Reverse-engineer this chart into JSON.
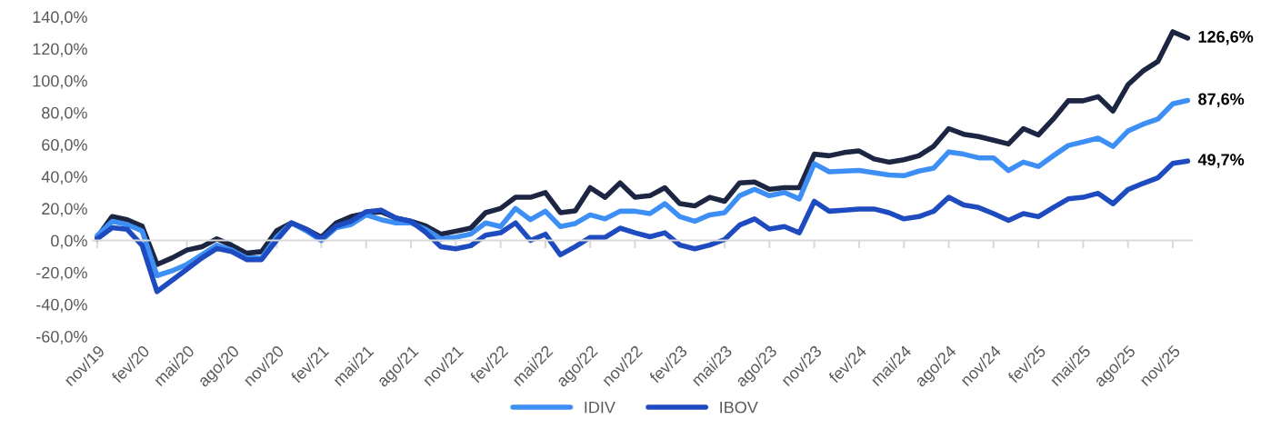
{
  "chart_data": {
    "type": "line",
    "categories": [
      "nov/19",
      null,
      null,
      "fev/20",
      null,
      null,
      "mai/20",
      null,
      null,
      "ago/20",
      null,
      null,
      "nov/20",
      null,
      null,
      "fev/21",
      null,
      null,
      "mai/21",
      null,
      null,
      "ago/21",
      null,
      null,
      "nov/21",
      null,
      null,
      "fev/22",
      null,
      null,
      "mai/22",
      null,
      null,
      "ago/22",
      null,
      null,
      "nov/22",
      null,
      null,
      "fev/23",
      null,
      null,
      "mai/23",
      null,
      null,
      "ago/23",
      null,
      null,
      "nov/23",
      null,
      null,
      "fev/24",
      null,
      null,
      "mai/24",
      null,
      null,
      "ago/24",
      null,
      null,
      "nov/24",
      null,
      null,
      "fev/25",
      null,
      null,
      "mai/25",
      null,
      null,
      "ago/25",
      null,
      null,
      "nov/25",
      null
    ],
    "series": [
      {
        "color": "#1c2541",
        "values": [
          2,
          15,
          13,
          9,
          -15,
          -11,
          -6,
          -4,
          1,
          -3,
          -8,
          -7,
          6,
          11,
          7,
          2,
          11,
          15,
          17,
          18,
          14,
          12,
          9,
          3.9,
          5.8,
          7.7,
          17.4,
          20,
          27,
          27,
          30,
          17.4,
          18.5,
          33,
          27,
          36,
          27,
          28,
          33,
          23,
          21.6,
          27,
          24.5,
          36,
          36.6,
          32,
          33,
          33,
          54,
          53,
          55,
          56,
          51,
          49,
          50.5,
          53,
          59,
          70,
          66.5,
          65,
          62.7,
          60.4,
          70,
          66,
          76,
          87.4,
          87.4,
          90,
          81,
          97.4,
          106,
          112,
          130.6,
          126.6
        ],
        "value_labels": [
          null,
          null,
          null,
          null,
          null,
          null,
          null,
          null,
          null,
          null,
          null,
          null,
          null,
          null,
          null,
          null,
          null,
          null,
          null,
          null,
          null,
          null,
          null,
          null,
          null,
          null,
          null,
          null,
          null,
          null,
          null,
          null,
          null,
          null,
          null,
          null,
          null,
          null,
          null,
          null,
          null,
          null,
          null,
          null,
          null,
          null,
          null,
          null,
          null,
          null,
          null,
          null,
          null,
          null,
          null,
          null,
          null,
          null,
          null,
          null,
          null,
          null,
          null,
          null,
          null,
          null,
          null,
          null,
          null,
          null,
          null,
          null,
          null,
          "126,6%"
        ]
      },
      {
        "name": "IDIV",
        "color": "#3d8ef5",
        "values": [
          3,
          12,
          10,
          6,
          -22,
          -19,
          -15,
          -9,
          -3,
          -6,
          -11,
          -11,
          2,
          11,
          6,
          0,
          8,
          10,
          16,
          13,
          11,
          11,
          7,
          1,
          2,
          4,
          11,
          8.7,
          20,
          13,
          18.3,
          8.7,
          10.6,
          16,
          13.5,
          18.3,
          18.3,
          16.8,
          23,
          14.9,
          12,
          16,
          17.4,
          28,
          32,
          28,
          30,
          26,
          48,
          43,
          43.4,
          43.8,
          42.4,
          41,
          40.5,
          43.4,
          45.3,
          55.4,
          54,
          51.7,
          51.7,
          43.8,
          49,
          46.3,
          53,
          59.4,
          61.7,
          64,
          58.8,
          68.5,
          72.7,
          76,
          85.5,
          87.6
        ],
        "value_labels": [
          null,
          null,
          null,
          null,
          null,
          null,
          null,
          null,
          null,
          null,
          null,
          null,
          null,
          null,
          null,
          null,
          null,
          null,
          null,
          null,
          null,
          null,
          null,
          null,
          null,
          null,
          null,
          null,
          null,
          null,
          null,
          null,
          null,
          null,
          null,
          null,
          null,
          null,
          null,
          null,
          null,
          null,
          null,
          null,
          null,
          null,
          null,
          null,
          null,
          null,
          null,
          null,
          null,
          null,
          null,
          null,
          null,
          null,
          null,
          null,
          null,
          null,
          null,
          null,
          null,
          null,
          null,
          null,
          null,
          null,
          null,
          null,
          null,
          "87,6%"
        ]
      },
      {
        "name": "IBOV",
        "color": "#1f4bc0",
        "values": [
          1,
          8,
          7,
          -3,
          -32,
          -25,
          -18,
          -11,
          -5,
          -7,
          -12,
          -12,
          0,
          11,
          7,
          1,
          9,
          12,
          18,
          19,
          14,
          12,
          5,
          -3.9,
          -5.2,
          -3.3,
          3.3,
          4.8,
          11,
          0,
          3.9,
          -9,
          -3.9,
          1.9,
          1.9,
          7.7,
          4.8,
          2.3,
          4.8,
          -2.9,
          -5.2,
          -2.9,
          0.6,
          9.6,
          13.5,
          7.1,
          8.7,
          4.8,
          24.5,
          18.3,
          18.9,
          19.7,
          19.7,
          17.4,
          13.5,
          14.9,
          18.3,
          27,
          22.2,
          20.6,
          16.8,
          12.5,
          16.8,
          14.9,
          20.6,
          26,
          27,
          29.5,
          23,
          31.8,
          35.7,
          39.2,
          48.2,
          49.7
        ],
        "value_labels": [
          null,
          null,
          null,
          null,
          null,
          null,
          null,
          null,
          null,
          null,
          null,
          null,
          null,
          null,
          null,
          null,
          null,
          null,
          null,
          null,
          null,
          null,
          null,
          null,
          null,
          null,
          null,
          null,
          null,
          null,
          null,
          null,
          null,
          null,
          null,
          null,
          null,
          null,
          null,
          null,
          null,
          null,
          null,
          null,
          null,
          null,
          null,
          null,
          null,
          null,
          null,
          null,
          null,
          null,
          null,
          null,
          null,
          null,
          null,
          null,
          null,
          null,
          null,
          null,
          null,
          null,
          null,
          null,
          null,
          null,
          null,
          null,
          null,
          "49,7%"
        ]
      }
    ],
    "ylim": [
      -60,
      140
    ],
    "yticks": [
      {
        "value": -60,
        "label": "-60,0%"
      },
      {
        "value": -40,
        "label": "-40,0%"
      },
      {
        "value": -20,
        "label": "-20,0%"
      },
      {
        "value": 0,
        "label": "0,0%"
      },
      {
        "value": 20,
        "label": "20,0%"
      },
      {
        "value": 40,
        "label": "40,0%"
      },
      {
        "value": 60,
        "label": "60,0%"
      },
      {
        "value": 80,
        "label": "80,0%"
      },
      {
        "value": 100,
        "label": "100,0%"
      },
      {
        "value": 120,
        "label": "120,0%"
      },
      {
        "value": 140,
        "label": "140,0%"
      }
    ],
    "legend": "bottom",
    "marker": "none",
    "line_style": "solid"
  }
}
